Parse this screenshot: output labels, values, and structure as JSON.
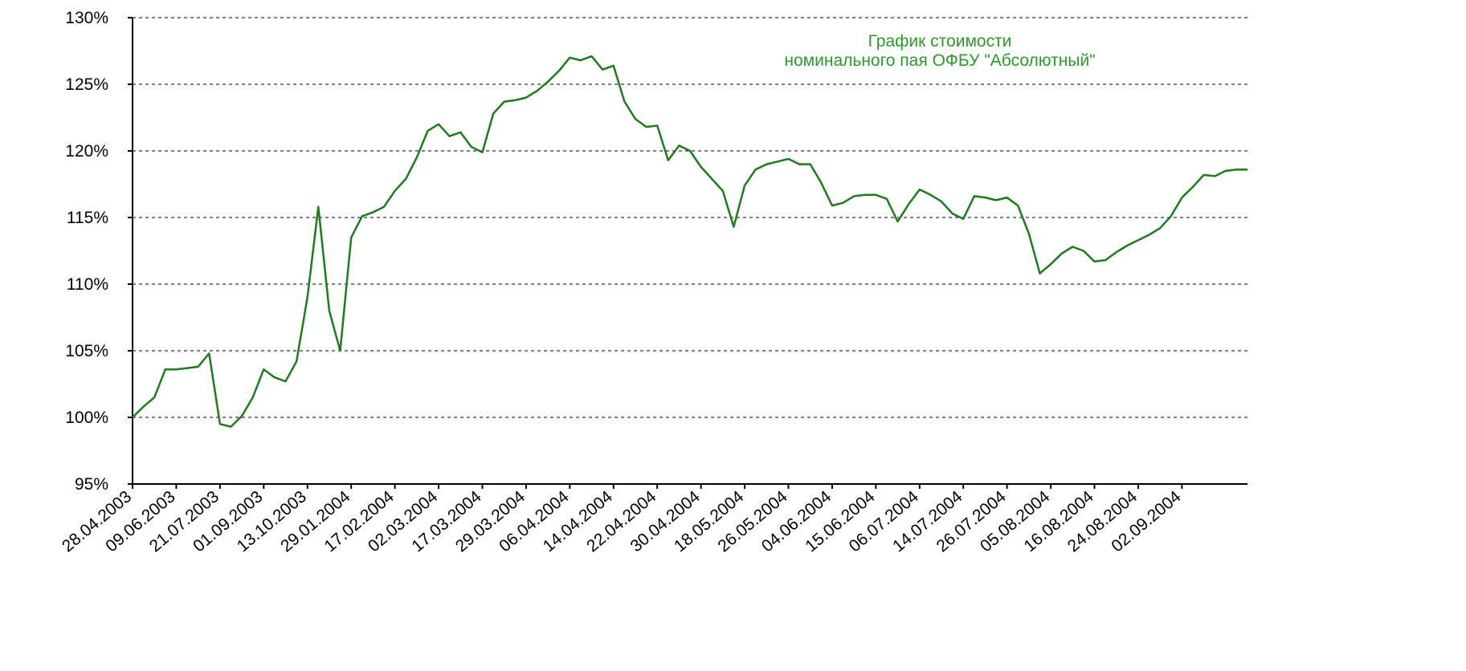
{
  "chart_data": {
    "type": "line",
    "title": [
      "График стоимости",
      "номинального пая ОФБУ \"Абсолютный\""
    ],
    "categories": [
      "28.04.2003",
      null,
      null,
      null,
      "09.06.2003",
      null,
      null,
      null,
      "21.07.2003",
      null,
      null,
      null,
      "01.09.2003",
      null,
      null,
      null,
      "13.10.2003",
      null,
      null,
      null,
      "29.01.2004",
      null,
      null,
      null,
      "17.02.2004",
      null,
      null,
      null,
      "02.03.2004",
      null,
      null,
      null,
      "17.03.2004",
      null,
      null,
      null,
      "29.03.2004",
      null,
      null,
      null,
      "06.04.2004",
      null,
      null,
      null,
      "14.04.2004",
      null,
      null,
      null,
      "22.04.2004",
      null,
      null,
      null,
      "30.04.2004",
      null,
      null,
      null,
      "18.05.2004",
      null,
      null,
      null,
      "26.05.2004",
      null,
      null,
      null,
      "04.06.2004",
      null,
      null,
      null,
      "15.06.2004",
      null,
      null,
      null,
      "06.07.2004",
      null,
      null,
      null,
      "14.07.2004",
      null,
      null,
      null,
      "26.07.2004",
      null,
      null,
      null,
      "05.08.2004",
      null,
      null,
      null,
      "16.08.2004",
      null,
      null,
      null,
      "24.08.2004",
      null,
      null,
      null,
      "02.09.2004",
      null,
      null,
      null,
      null,
      null,
      null
    ],
    "series": [
      {
        "color": "#1e7b1e",
        "values": [
          100,
          100.8,
          101.5,
          103.6,
          103.6,
          103.7,
          103.8,
          104.8,
          99.5,
          99.3,
          100.1,
          101.5,
          103.6,
          103,
          102.7,
          104.2,
          109,
          115.8,
          108,
          105,
          113.5,
          115.1,
          115.4,
          115.8,
          117,
          117.9,
          119.5,
          121.5,
          122,
          121.1,
          121.4,
          120.3,
          119.9,
          122.8,
          123.7,
          123.8,
          124,
          124.5,
          125.2,
          126,
          127,
          126.8,
          127.1,
          126.1,
          126.4,
          123.7,
          122.4,
          121.8,
          121.9,
          119.3,
          120.4,
          120,
          118.8,
          117.9,
          117,
          114.3,
          117.4,
          118.6,
          119,
          119.2,
          119.4,
          119,
          119,
          117.6,
          115.9,
          116.1,
          116.6,
          116.7,
          116.7,
          116.4,
          114.7,
          116,
          117.1,
          116.7,
          116.2,
          115.3,
          114.9,
          116.6,
          116.5,
          116.3,
          116.5,
          115.9,
          113.8,
          110.8,
          111.5,
          112.3,
          112.8,
          112.5,
          111.7,
          111.8,
          112.4,
          112.9,
          113.3,
          113.7,
          114.2,
          115.1,
          116.5,
          117.3,
          118.2,
          118.1,
          118.5,
          118.6,
          118.6
        ]
      }
    ],
    "ylim": [
      95,
      130
    ],
    "yticks": [
      {
        "value": 95,
        "label": "95%"
      },
      {
        "value": 100,
        "label": "100%"
      },
      {
        "value": 105,
        "label": "105%"
      },
      {
        "value": 110,
        "label": "110%"
      },
      {
        "value": 115,
        "label": "115%"
      },
      {
        "value": 120,
        "label": "120%"
      },
      {
        "value": 125,
        "label": "125%"
      },
      {
        "value": 130,
        "label": "130%"
      }
    ],
    "grid": true
  }
}
